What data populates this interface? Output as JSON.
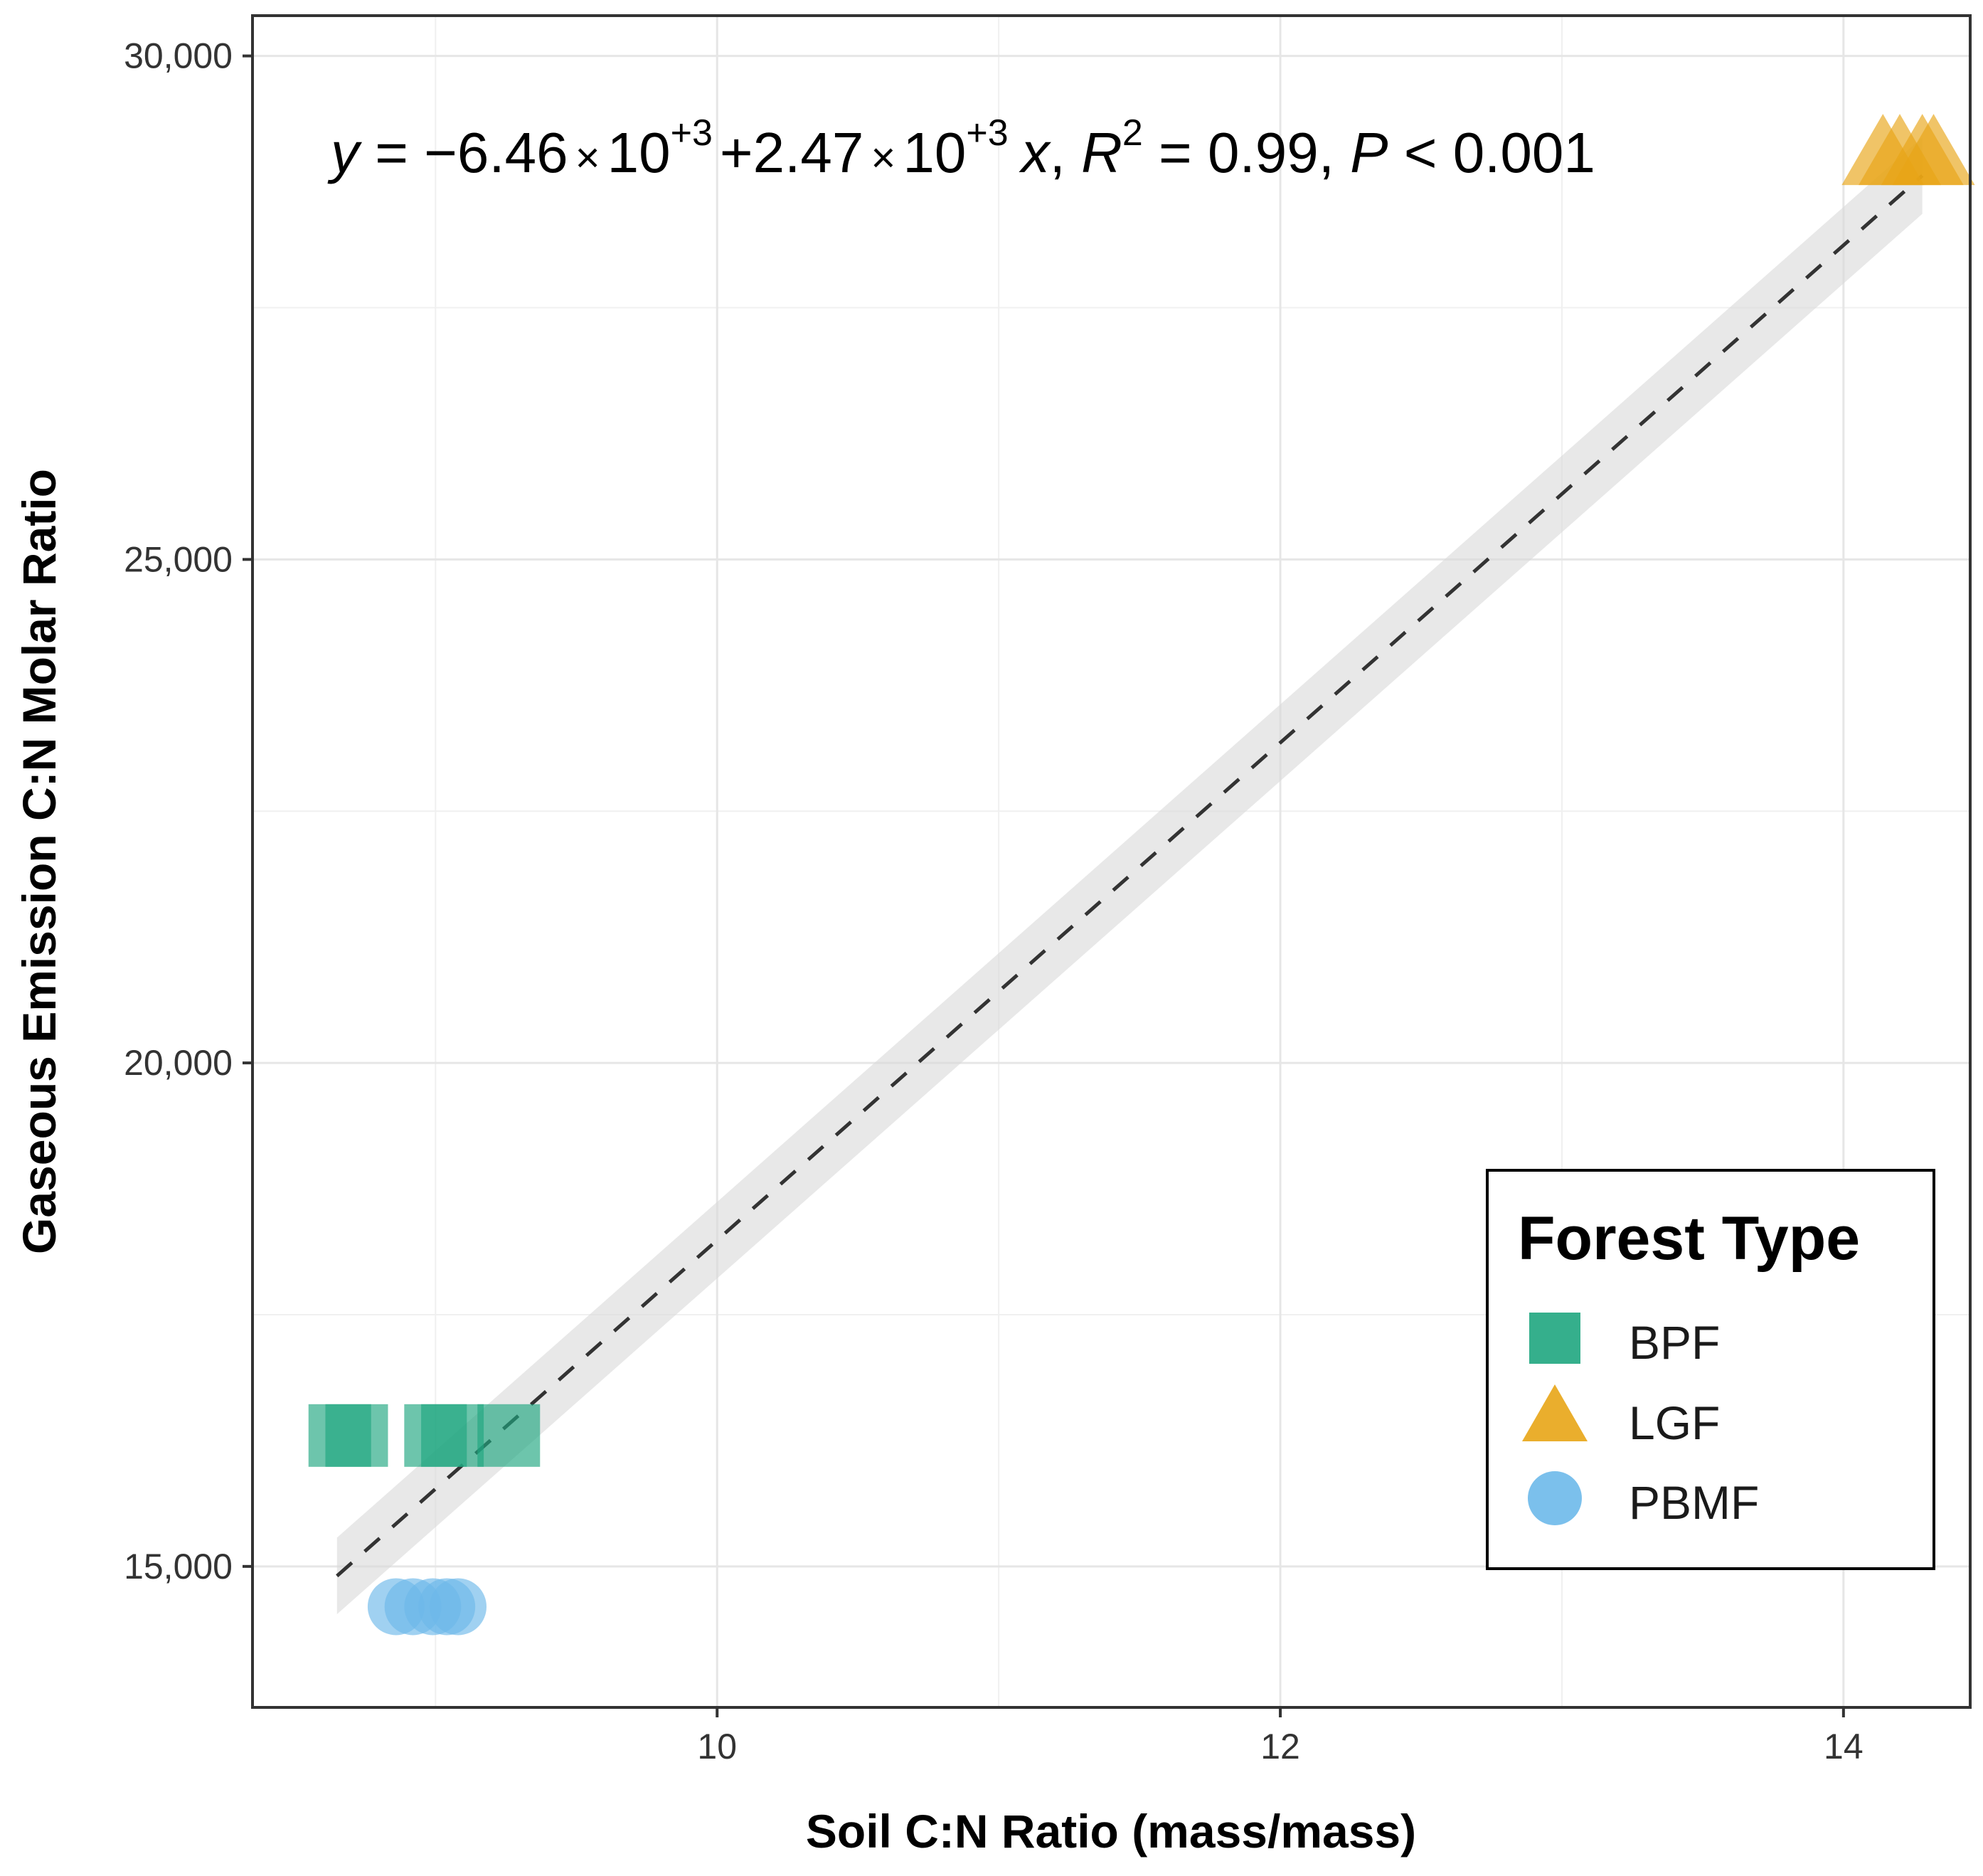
{
  "chart_data": {
    "type": "scatter",
    "title": "",
    "xlabel": "Soil C:N Ratio (mass/mass)",
    "ylabel": "Gaseous Emission C:N Molar Ratio",
    "xlim": [
      8.35,
      14.45
    ],
    "ylim": [
      13600,
      30400
    ],
    "x_ticks": [
      10,
      12,
      14
    ],
    "x_tick_labels": [
      "10",
      "12",
      "14"
    ],
    "x_minor_ticks": [
      9,
      11,
      13
    ],
    "y_ticks": [
      15000,
      20000,
      25000,
      30000
    ],
    "y_tick_labels": [
      "15,000",
      "20,000",
      "25,000",
      "30,000"
    ],
    "y_minor_ticks": [
      17500,
      22500,
      27500
    ],
    "grid": true,
    "legend": {
      "title": "Forest Type",
      "position": "bottom-right"
    },
    "series": [
      {
        "name": "BPF",
        "marker": "square",
        "color": "#1fa680",
        "points": [
          [
            8.66,
            16300
          ],
          [
            8.72,
            16300
          ],
          [
            9.0,
            16300
          ],
          [
            9.06,
            16300
          ],
          [
            9.26,
            16300
          ]
        ]
      },
      {
        "name": "LGF",
        "marker": "triangle",
        "color": "#e8a516",
        "points": [
          [
            14.14,
            29000
          ],
          [
            14.2,
            29000
          ],
          [
            14.28,
            29000
          ],
          [
            14.32,
            29000
          ]
        ]
      },
      {
        "name": "PBMF",
        "marker": "circle",
        "color": "#6db9ea",
        "points": [
          [
            8.86,
            14600
          ],
          [
            8.92,
            14600
          ],
          [
            8.99,
            14600
          ],
          [
            9.04,
            14600
          ],
          [
            9.08,
            14600
          ]
        ]
      }
    ],
    "fit": {
      "intercept": -6460,
      "slope": 2470,
      "x_range": [
        8.65,
        14.28
      ],
      "ci_halfwidth": 380,
      "equation_label": {
        "y": "y",
        "eq": " = −6.46",
        "times1": "×",
        "base1": "10",
        "exp1": "+3",
        "plus": "+",
        "coef": "2.47",
        "times2": "×",
        "base2": "10",
        "exp2": "+3",
        "x": "x",
        "r2_prefix": ", ",
        "r": "R",
        "r2_exp": "2",
        "r2_value": " = 0.99, ",
        "p": "P",
        "p_value": " < 0.001"
      }
    }
  }
}
